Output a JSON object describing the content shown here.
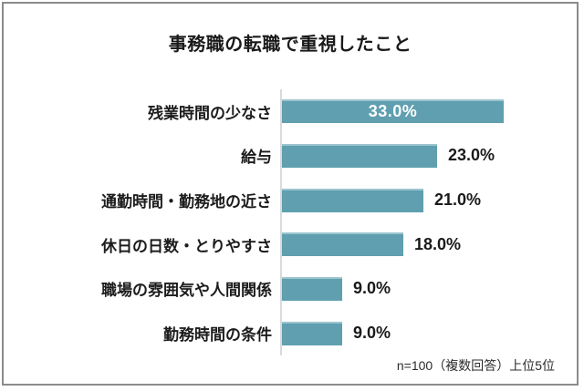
{
  "chart_data": {
    "type": "bar",
    "orientation": "horizontal",
    "title": "事務職の転職で重視したこと",
    "categories": [
      "残業時間の少なさ",
      "給与",
      "通勤時間・勤務地の近さ",
      "休日の日数・とりやすさ",
      "職場の雰囲気や人間関係",
      "勤務時間の条件"
    ],
    "values": [
      33.0,
      23.0,
      21.0,
      18.0,
      9.0,
      9.0
    ],
    "value_labels": [
      "33.0%",
      "23.0%",
      "21.0%",
      "18.0%",
      "9.0%",
      "9.0%"
    ],
    "xlim": [
      0,
      40
    ],
    "legend": "none",
    "grid": "single-vertical-axis-line",
    "note": "n=100（複数回答）上位5位",
    "bar_color": "#5f9fb0",
    "bar_top_highlight_color": "#9cc4ce",
    "axis_line_color": "#dadada",
    "frame_border_color": "#8b8b8b",
    "inside_label_rows": [
      0
    ],
    "inside_label_color": "#ffffff",
    "outside_label_color": "#1a1a1a"
  }
}
